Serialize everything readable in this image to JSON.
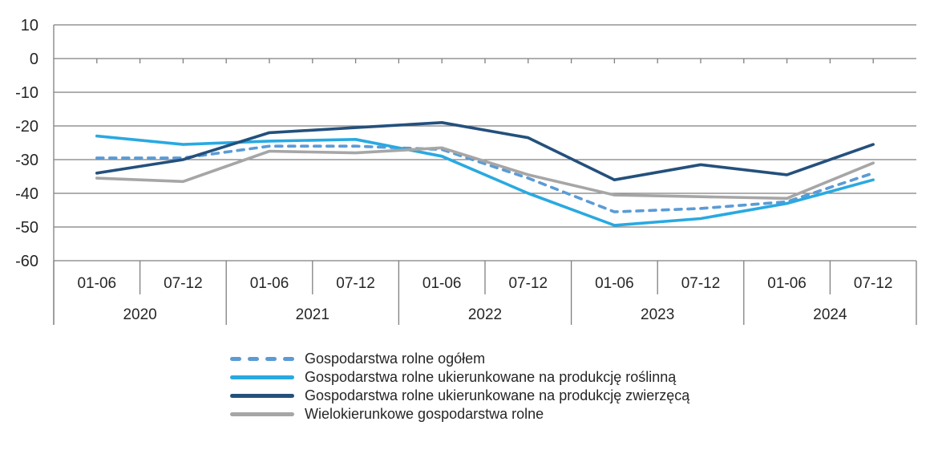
{
  "chart_data": {
    "type": "line",
    "ylim": [
      -60,
      10
    ],
    "yticks": [
      10,
      0,
      -10,
      -20,
      -30,
      -40,
      -50,
      -60
    ],
    "grid": true,
    "legend_position": "bottom",
    "x_groups": [
      {
        "year": "2020",
        "periods": [
          "01-06",
          "07-12"
        ]
      },
      {
        "year": "2021",
        "periods": [
          "01-06",
          "07-12"
        ]
      },
      {
        "year": "2022",
        "periods": [
          "01-06",
          "07-12"
        ]
      },
      {
        "year": "2023",
        "periods": [
          "01-06",
          "07-12"
        ]
      },
      {
        "year": "2024",
        "periods": [
          "01-06",
          "07-12"
        ]
      }
    ],
    "series": [
      {
        "name": "Gospodarstwa rolne ogółem",
        "color": "#5B9BD5",
        "dash": true,
        "values": [
          -29.5,
          -29.5,
          -26,
          -26,
          -27,
          -35.5,
          -45.5,
          -44.5,
          -42.5,
          -34
        ]
      },
      {
        "name": "Gospodarstwa rolne ukierunkowane na produkcję roślinną",
        "color": "#29A9E1",
        "dash": false,
        "values": [
          -23,
          -25.5,
          -24.5,
          -24,
          -29,
          -40,
          -49.5,
          -47.5,
          -43,
          -36
        ]
      },
      {
        "name": "Gospodarstwa rolne ukierunkowane na produkcję zwierzęcą",
        "color": "#24507C",
        "dash": false,
        "values": [
          -34,
          -30,
          -22,
          -20.5,
          -19,
          -23.5,
          -36,
          -31.5,
          -34.5,
          -25.5
        ]
      },
      {
        "name": "Wielokierunkowe gospodarstwa rolne",
        "color": "#A6A6A6",
        "dash": false,
        "values": [
          -35.5,
          -36.5,
          -27.5,
          -28,
          -26.5,
          -34.5,
          -40.5,
          -41,
          -41.5,
          -31
        ]
      }
    ],
    "axis_color": "#7F7F7F",
    "text_color": "#262626"
  }
}
